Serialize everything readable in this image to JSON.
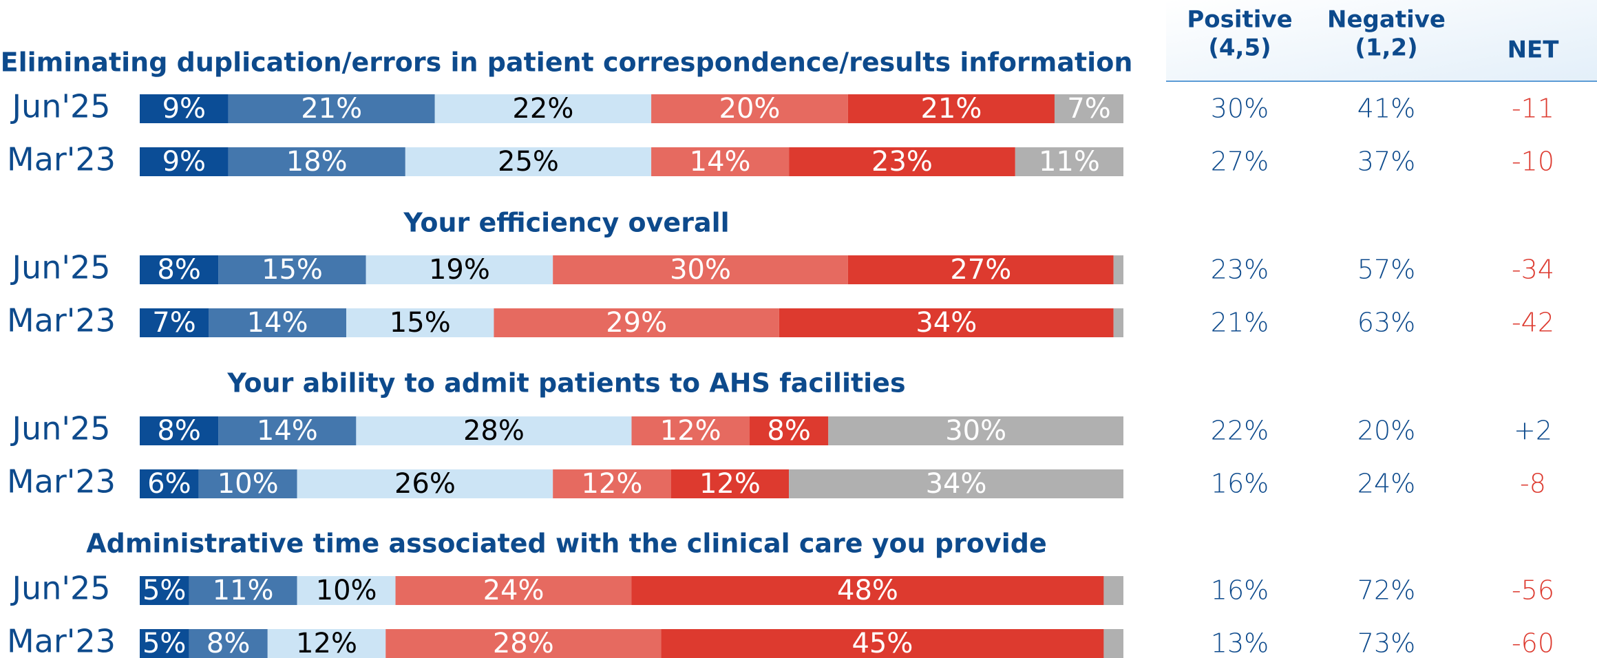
{
  "chart_data": [
    {
      "type": "bar",
      "orientation": "horizontal",
      "stacked": true,
      "title": "Eliminating duplication/errors in patient correspondence/results information",
      "categories": [
        "Jun'25",
        "Mar'23"
      ],
      "xlim": [
        0,
        100
      ],
      "series": [
        {
          "color": "#0b4d96",
          "values": [
            9,
            9
          ],
          "value_labels": [
            "9%",
            "9%"
          ]
        },
        {
          "color": "#4477ad",
          "values": [
            21,
            18
          ],
          "value_labels": [
            "21%",
            "18%"
          ]
        },
        {
          "color": "#cce4f5",
          "values": [
            22,
            25
          ],
          "value_labels": [
            "22%",
            "25%"
          ]
        },
        {
          "color": "#e66a60",
          "values": [
            20,
            14
          ],
          "value_labels": [
            "20%",
            "14%"
          ]
        },
        {
          "color": "#dd3a2f",
          "values": [
            21,
            23
          ],
          "value_labels": [
            "21%",
            "23%"
          ]
        },
        {
          "color": "#b0b0b0",
          "values": [
            7,
            11
          ],
          "value_labels": [
            "7%",
            "11%"
          ]
        }
      ]
    },
    {
      "type": "bar",
      "orientation": "horizontal",
      "stacked": true,
      "title": "Your efficiency overall",
      "categories": [
        "Jun'25",
        "Mar'23"
      ],
      "xlim": [
        0,
        100
      ],
      "series": [
        {
          "color": "#0b4d96",
          "values": [
            8,
            7
          ],
          "value_labels": [
            "8%",
            "7%"
          ]
        },
        {
          "color": "#4477ad",
          "values": [
            15,
            14
          ],
          "value_labels": [
            "15%",
            "14%"
          ]
        },
        {
          "color": "#cce4f5",
          "values": [
            19,
            15
          ],
          "value_labels": [
            "19%",
            "15%"
          ]
        },
        {
          "color": "#e66a60",
          "values": [
            30,
            29
          ],
          "value_labels": [
            "30%",
            "29%"
          ]
        },
        {
          "color": "#dd3a2f",
          "values": [
            27,
            34
          ],
          "value_labels": [
            "27%",
            "34%"
          ]
        },
        {
          "color": "#b0b0b0",
          "values": [
            1,
            1
          ],
          "value_labels": [
            null,
            null
          ]
        }
      ]
    },
    {
      "type": "bar",
      "orientation": "horizontal",
      "stacked": true,
      "title": "Your ability to admit patients to AHS facilities",
      "categories": [
        "Jun'25",
        "Mar'23"
      ],
      "xlim": [
        0,
        100
      ],
      "series": [
        {
          "color": "#0b4d96",
          "values": [
            8,
            6
          ],
          "value_labels": [
            "8%",
            "6%"
          ]
        },
        {
          "color": "#4477ad",
          "values": [
            14,
            10
          ],
          "value_labels": [
            "14%",
            "10%"
          ]
        },
        {
          "color": "#cce4f5",
          "values": [
            28,
            26
          ],
          "value_labels": [
            "28%",
            "26%"
          ]
        },
        {
          "color": "#e66a60",
          "values": [
            12,
            12
          ],
          "value_labels": [
            "12%",
            "12%"
          ]
        },
        {
          "color": "#dd3a2f",
          "values": [
            8,
            12
          ],
          "value_labels": [
            "8%",
            "12%"
          ]
        },
        {
          "color": "#b0b0b0",
          "values": [
            30,
            34
          ],
          "value_labels": [
            "30%",
            "34%"
          ]
        }
      ]
    },
    {
      "type": "bar",
      "orientation": "horizontal",
      "stacked": true,
      "title": "Administrative time associated with the clinical care you provide",
      "categories": [
        "Jun'25",
        "Mar'23"
      ],
      "xlim": [
        0,
        100
      ],
      "series": [
        {
          "color": "#0b4d96",
          "values": [
            5,
            5
          ],
          "value_labels": [
            "5%",
            "5%"
          ]
        },
        {
          "color": "#4477ad",
          "values": [
            11,
            8
          ],
          "value_labels": [
            "11%",
            "8%"
          ]
        },
        {
          "color": "#cce4f5",
          "values": [
            10,
            12
          ],
          "value_labels": [
            "10%",
            "12%"
          ]
        },
        {
          "color": "#e66a60",
          "values": [
            24,
            28
          ],
          "value_labels": [
            "24%",
            "28%"
          ]
        },
        {
          "color": "#dd3a2f",
          "values": [
            48,
            45
          ],
          "value_labels": [
            "48%",
            "45%"
          ]
        },
        {
          "color": "#b0b0b0",
          "values": [
            2,
            2
          ],
          "value_labels": [
            null,
            null
          ]
        }
      ]
    }
  ],
  "table": {
    "columns": [
      [
        "Positive",
        "(4,5)"
      ],
      [
        "Negative",
        "(1,2)"
      ],
      [
        "NET"
      ]
    ],
    "rows": [
      [
        "30%",
        "41%",
        "-11"
      ],
      [
        "27%",
        "37%",
        "-10"
      ],
      [
        "23%",
        "57%",
        "-34"
      ],
      [
        "21%",
        "63%",
        "-42"
      ],
      [
        "22%",
        "20%",
        "+2"
      ],
      [
        "16%",
        "24%",
        "-8"
      ],
      [
        "16%",
        "72%",
        "-56"
      ],
      [
        "13%",
        "73%",
        "-60"
      ]
    ]
  }
}
